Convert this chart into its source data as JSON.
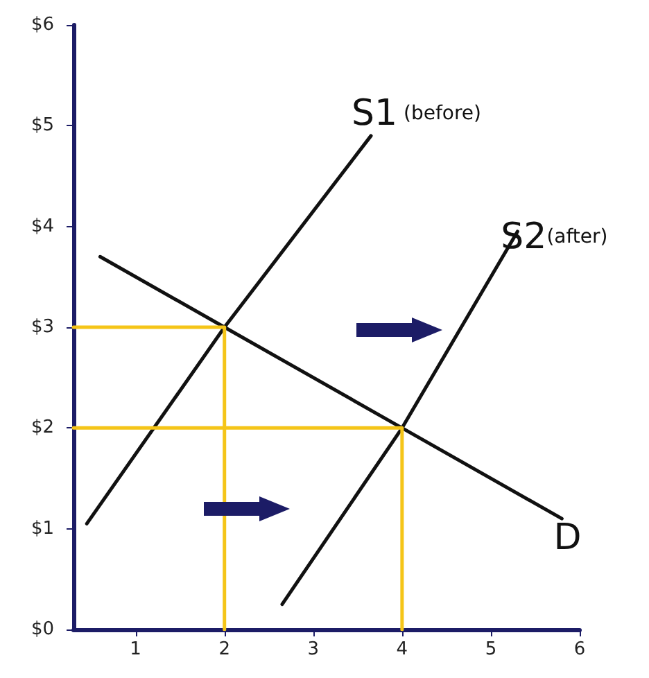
{
  "chart_data": {
    "type": "line",
    "xlim": [
      0.3,
      6
    ],
    "ylim": [
      0,
      6
    ],
    "xticks": [
      1,
      2,
      3,
      4,
      5,
      6
    ],
    "yticks": [
      {
        "value": 0,
        "label": "$0"
      },
      {
        "value": 1,
        "label": "$1"
      },
      {
        "value": 2,
        "label": "$2"
      },
      {
        "value": 3,
        "label": "$3"
      },
      {
        "value": 4,
        "label": "$4"
      },
      {
        "value": 5,
        "label": "$5"
      },
      {
        "value": 6,
        "label": "$6"
      }
    ],
    "grid": false,
    "marker": "none",
    "line_style": "solid",
    "series": [
      {
        "name": "S1 (before)",
        "color": "#111111",
        "x": [
          0.45,
          2,
          3.65
        ],
        "values": [
          1.05,
          3,
          4.9
        ]
      },
      {
        "name": "S2(after)",
        "color": "#111111",
        "x": [
          2.65,
          4,
          5.3
        ],
        "values": [
          0.25,
          2,
          3.95
        ]
      },
      {
        "name": "D",
        "color": "#111111",
        "x": [
          0.6,
          2,
          4,
          5.8
        ],
        "values": [
          3.7,
          3,
          2,
          1.1
        ]
      },
      {
        "color": "#f5c518",
        "x": [
          0.3,
          2,
          2
        ],
        "values": [
          3,
          3,
          0
        ]
      },
      {
        "color": "#f5c518",
        "x": [
          0.3,
          4,
          4
        ],
        "values": [
          2,
          2,
          0
        ]
      }
    ]
  }
}
